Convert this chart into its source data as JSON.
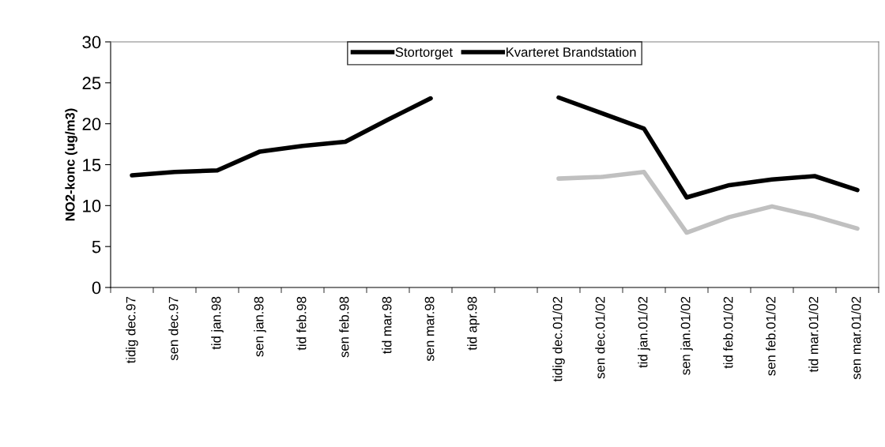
{
  "chart_data": {
    "type": "line",
    "ylabel": "NO2-konc (ug/m3)",
    "categories": [
      "tidig dec.97",
      "sen dec.97",
      "tid jan.98",
      "sen jan.98",
      "tid feb.98",
      "sen feb.98",
      "tid mar.98",
      "sen mar.98",
      "tid apr.98",
      null,
      "tidig dec.01/02",
      "sen dec.01/02",
      "tid jan.01/02",
      "sen jan.01/02",
      "tid feb.01/02",
      "sen feb.01/02",
      "tid mar.01/02",
      "sen mar.01/02"
    ],
    "series": [
      {
        "name": "Stortorget",
        "color": "#000000",
        "values": [
          13.7,
          14.1,
          14.3,
          16.6,
          17.3,
          17.8,
          20.5,
          23.1,
          null,
          null,
          null,
          null,
          null,
          null,
          null,
          null,
          null,
          null
        ]
      },
      {
        "name": "Kvarteret Brandstation",
        "color": "#000000",
        "values": [
          null,
          null,
          null,
          null,
          null,
          null,
          null,
          null,
          null,
          null,
          23.2,
          21.3,
          19.4,
          11.0,
          12.5,
          13.2,
          13.6,
          11.9
        ]
      },
      {
        "color": "#c0c0c0",
        "values": [
          null,
          null,
          null,
          null,
          null,
          null,
          null,
          null,
          null,
          null,
          13.3,
          13.5,
          14.1,
          6.7,
          8.6,
          9.9,
          8.7,
          7.2
        ]
      }
    ],
    "ylim": [
      0,
      30
    ],
    "yticks": [
      0,
      5,
      10,
      15,
      20,
      25,
      30
    ],
    "legend": "top",
    "grid": false,
    "marker": "none",
    "line_style": "solid"
  }
}
